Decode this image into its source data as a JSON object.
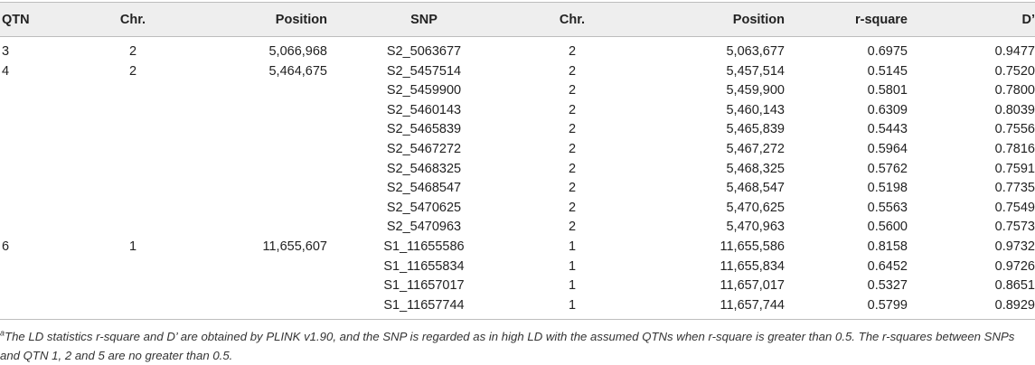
{
  "table": {
    "headers": [
      "QTN",
      "Chr.",
      "Position",
      "SNP",
      "Chr.",
      "Position",
      "r-square",
      "D’"
    ],
    "rows": [
      {
        "qtn": "3",
        "qchr": "2",
        "qpos": "5,066,968",
        "snp": "S2_5063677",
        "chr": "2",
        "pos": "5,063,677",
        "r2": "0.6975",
        "d": "0.9477"
      },
      {
        "qtn": "4",
        "qchr": "2",
        "qpos": "5,464,675",
        "snp": "S2_5457514",
        "chr": "2",
        "pos": "5,457,514",
        "r2": "0.5145",
        "d": "0.7520"
      },
      {
        "qtn": "",
        "qchr": "",
        "qpos": "",
        "snp": "S2_5459900",
        "chr": "2",
        "pos": "5,459,900",
        "r2": "0.5801",
        "d": "0.7800"
      },
      {
        "qtn": "",
        "qchr": "",
        "qpos": "",
        "snp": "S2_5460143",
        "chr": "2",
        "pos": "5,460,143",
        "r2": "0.6309",
        "d": "0.8039"
      },
      {
        "qtn": "",
        "qchr": "",
        "qpos": "",
        "snp": "S2_5465839",
        "chr": "2",
        "pos": "5,465,839",
        "r2": "0.5443",
        "d": "0.7556"
      },
      {
        "qtn": "",
        "qchr": "",
        "qpos": "",
        "snp": "S2_5467272",
        "chr": "2",
        "pos": "5,467,272",
        "r2": "0.5964",
        "d": "0.7816"
      },
      {
        "qtn": "",
        "qchr": "",
        "qpos": "",
        "snp": "S2_5468325",
        "chr": "2",
        "pos": "5,468,325",
        "r2": "0.5762",
        "d": "0.7591"
      },
      {
        "qtn": "",
        "qchr": "",
        "qpos": "",
        "snp": "S2_5468547",
        "chr": "2",
        "pos": "5,468,547",
        "r2": "0.5198",
        "d": "0.7735"
      },
      {
        "qtn": "",
        "qchr": "",
        "qpos": "",
        "snp": "S2_5470625",
        "chr": "2",
        "pos": "5,470,625",
        "r2": "0.5563",
        "d": "0.7549"
      },
      {
        "qtn": "",
        "qchr": "",
        "qpos": "",
        "snp": "S2_5470963",
        "chr": "2",
        "pos": "5,470,963",
        "r2": "0.5600",
        "d": "0.7573"
      },
      {
        "qtn": "6",
        "qchr": "1",
        "qpos": "11,655,607",
        "snp": "S1_11655586",
        "chr": "1",
        "pos": "11,655,586",
        "r2": "0.8158",
        "d": "0.9732"
      },
      {
        "qtn": "",
        "qchr": "",
        "qpos": "",
        "snp": "S1_11655834",
        "chr": "1",
        "pos": "11,655,834",
        "r2": "0.6452",
        "d": "0.9726"
      },
      {
        "qtn": "",
        "qchr": "",
        "qpos": "",
        "snp": "S1_11657017",
        "chr": "1",
        "pos": "11,657,017",
        "r2": "0.5327",
        "d": "0.8651"
      },
      {
        "qtn": "",
        "qchr": "",
        "qpos": "",
        "snp": "S1_11657744",
        "chr": "1",
        "pos": "11,657,744",
        "r2": "0.5799",
        "d": "0.8929"
      }
    ]
  },
  "footnote": {
    "marker": "a",
    "text": "The LD statistics r-square and D’ are obtained by PLINK v1.90, and the SNP is regarded as in high LD with the assumed QTNs when r-square is greater than 0.5. The r-squares between SNPs and QTN 1, 2 and 5 are no greater than 0.5."
  }
}
